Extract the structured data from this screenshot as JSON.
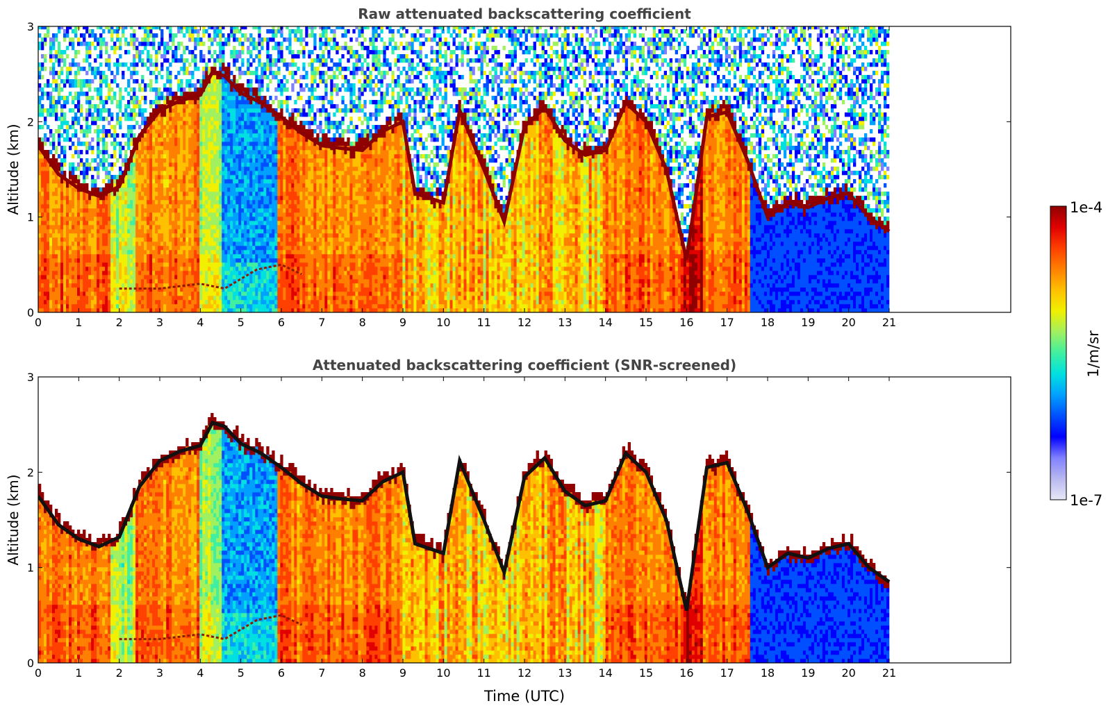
{
  "chart_data": [
    {
      "type": "heatmap",
      "title": "Raw attenuated backscattering coefficient",
      "xlabel": "",
      "ylabel": "Altitude (km)",
      "xlim": [
        0,
        24
      ],
      "ylim": [
        0,
        3
      ],
      "x_ticks": [
        "0",
        "1",
        "2",
        "3",
        "4",
        "5",
        "6",
        "7",
        "8",
        "9",
        "10",
        "11",
        "12",
        "13",
        "14",
        "15",
        "16",
        "17",
        "18",
        "19",
        "20",
        "21"
      ],
      "y_ticks": [
        "0",
        "1",
        "2",
        "3"
      ],
      "data_end_hour": 21,
      "noise_fill": true,
      "cloud_layer_km": [
        [
          0.0,
          1.75
        ],
        [
          0.5,
          1.45
        ],
        [
          1.0,
          1.3
        ],
        [
          1.5,
          1.22
        ],
        [
          2.0,
          1.32
        ],
        [
          2.5,
          1.85
        ],
        [
          3.0,
          2.12
        ],
        [
          3.5,
          2.22
        ],
        [
          4.0,
          2.28
        ],
        [
          4.3,
          2.52
        ],
        [
          4.6,
          2.48
        ],
        [
          5.0,
          2.3
        ],
        [
          5.5,
          2.2
        ],
        [
          6.0,
          2.05
        ],
        [
          6.5,
          1.88
        ],
        [
          7.0,
          1.75
        ],
        [
          7.5,
          1.72
        ],
        [
          8.0,
          1.7
        ],
        [
          8.5,
          1.9
        ],
        [
          9.0,
          2.0
        ],
        [
          9.3,
          1.25
        ],
        [
          10.0,
          1.15
        ],
        [
          10.4,
          2.12
        ],
        [
          11.0,
          1.5
        ],
        [
          11.5,
          0.95
        ],
        [
          12.0,
          1.95
        ],
        [
          12.5,
          2.15
        ],
        [
          13.0,
          1.8
        ],
        [
          13.5,
          1.65
        ],
        [
          14.0,
          1.7
        ],
        [
          14.5,
          2.2
        ],
        [
          15.0,
          2.0
        ],
        [
          15.5,
          1.5
        ],
        [
          16.0,
          0.55
        ],
        [
          16.5,
          2.05
        ],
        [
          17.0,
          2.1
        ],
        [
          17.5,
          1.6
        ],
        [
          18.0,
          1.0
        ],
        [
          18.5,
          1.15
        ],
        [
          19.0,
          1.1
        ],
        [
          19.5,
          1.2
        ],
        [
          20.0,
          1.25
        ],
        [
          20.5,
          1.0
        ],
        [
          21.0,
          0.85
        ]
      ],
      "boundary_layer_km": [
        [
          2.0,
          0.25
        ],
        [
          3.0,
          0.25
        ],
        [
          4.0,
          0.3
        ],
        [
          4.6,
          0.25
        ],
        [
          5.0,
          0.35
        ],
        [
          5.4,
          0.45
        ],
        [
          6.0,
          0.5
        ],
        [
          6.5,
          0.4
        ]
      ],
      "segments": [
        {
          "from": 0.0,
          "to": 1.8,
          "level": "high"
        },
        {
          "from": 1.8,
          "to": 2.4,
          "level": "medium"
        },
        {
          "from": 2.4,
          "to": 4.0,
          "level": "high"
        },
        {
          "from": 4.0,
          "to": 4.5,
          "level": "medium"
        },
        {
          "from": 4.5,
          "to": 5.9,
          "level": "low"
        },
        {
          "from": 5.9,
          "to": 9.0,
          "level": "high"
        },
        {
          "from": 9.0,
          "to": 14.0,
          "level": "mixed"
        },
        {
          "from": 14.0,
          "to": 15.9,
          "level": "high"
        },
        {
          "from": 15.9,
          "to": 16.4,
          "level": "very-high"
        },
        {
          "from": 16.4,
          "to": 17.6,
          "level": "high"
        },
        {
          "from": 17.6,
          "to": 21.0,
          "level": "low"
        }
      ]
    },
    {
      "type": "heatmap",
      "title": "Attenuated backscattering coefficient (SNR-screened)",
      "xlabel": "Time (UTC)",
      "ylabel": "Altitude (km)",
      "xlim": [
        0,
        24
      ],
      "ylim": [
        0,
        3
      ],
      "x_ticks": [
        "0",
        "1",
        "2",
        "3",
        "4",
        "5",
        "6",
        "7",
        "8",
        "9",
        "10",
        "11",
        "12",
        "13",
        "14",
        "15",
        "16",
        "17",
        "18",
        "19",
        "20",
        "21"
      ],
      "y_ticks": [
        "0",
        "1",
        "2",
        "3"
      ],
      "data_end_hour": 21,
      "noise_fill": false,
      "cloud_layer_km": [
        [
          0.0,
          1.75
        ],
        [
          0.5,
          1.45
        ],
        [
          1.0,
          1.3
        ],
        [
          1.5,
          1.22
        ],
        [
          2.0,
          1.32
        ],
        [
          2.5,
          1.85
        ],
        [
          3.0,
          2.12
        ],
        [
          3.5,
          2.22
        ],
        [
          4.0,
          2.28
        ],
        [
          4.3,
          2.52
        ],
        [
          4.6,
          2.48
        ],
        [
          5.0,
          2.3
        ],
        [
          5.5,
          2.2
        ],
        [
          6.0,
          2.05
        ],
        [
          6.5,
          1.88
        ],
        [
          7.0,
          1.75
        ],
        [
          7.5,
          1.72
        ],
        [
          8.0,
          1.7
        ],
        [
          8.5,
          1.9
        ],
        [
          9.0,
          2.0
        ],
        [
          9.3,
          1.25
        ],
        [
          10.0,
          1.15
        ],
        [
          10.4,
          2.12
        ],
        [
          11.0,
          1.5
        ],
        [
          11.5,
          0.95
        ],
        [
          12.0,
          1.95
        ],
        [
          12.5,
          2.15
        ],
        [
          13.0,
          1.8
        ],
        [
          13.5,
          1.65
        ],
        [
          14.0,
          1.7
        ],
        [
          14.5,
          2.2
        ],
        [
          15.0,
          2.0
        ],
        [
          15.5,
          1.5
        ],
        [
          16.0,
          0.55
        ],
        [
          16.5,
          2.05
        ],
        [
          17.0,
          2.1
        ],
        [
          17.5,
          1.6
        ],
        [
          18.0,
          1.0
        ],
        [
          18.5,
          1.15
        ],
        [
          19.0,
          1.1
        ],
        [
          19.5,
          1.2
        ],
        [
          20.0,
          1.25
        ],
        [
          20.5,
          1.0
        ],
        [
          21.0,
          0.85
        ]
      ],
      "boundary_layer_km": [
        [
          2.0,
          0.25
        ],
        [
          3.0,
          0.25
        ],
        [
          4.0,
          0.3
        ],
        [
          4.6,
          0.25
        ],
        [
          5.0,
          0.35
        ],
        [
          5.4,
          0.45
        ],
        [
          6.0,
          0.5
        ],
        [
          6.5,
          0.4
        ]
      ],
      "segments": [
        {
          "from": 0.0,
          "to": 1.8,
          "level": "high"
        },
        {
          "from": 1.8,
          "to": 2.4,
          "level": "medium"
        },
        {
          "from": 2.4,
          "to": 4.0,
          "level": "high"
        },
        {
          "from": 4.0,
          "to": 4.5,
          "level": "medium"
        },
        {
          "from": 4.5,
          "to": 5.9,
          "level": "low"
        },
        {
          "from": 5.9,
          "to": 9.0,
          "level": "high"
        },
        {
          "from": 9.0,
          "to": 14.0,
          "level": "mixed"
        },
        {
          "from": 14.0,
          "to": 15.9,
          "level": "high"
        },
        {
          "from": 15.9,
          "to": 16.4,
          "level": "very-high"
        },
        {
          "from": 16.4,
          "to": 17.6,
          "level": "high"
        },
        {
          "from": 17.6,
          "to": 21.0,
          "level": "low"
        }
      ]
    }
  ],
  "colorbar": {
    "label": "1/m/sr",
    "max_label": "1e-4",
    "min_label": "1e-7",
    "colors": [
      "#e8e8f8",
      "#b8b8f0",
      "#8080ff",
      "#0000ff",
      "#0050ff",
      "#00a0ff",
      "#00e0e0",
      "#40f0a0",
      "#a0f060",
      "#f0f000",
      "#ffc000",
      "#ff8000",
      "#ff4000",
      "#e00000",
      "#900000"
    ]
  }
}
